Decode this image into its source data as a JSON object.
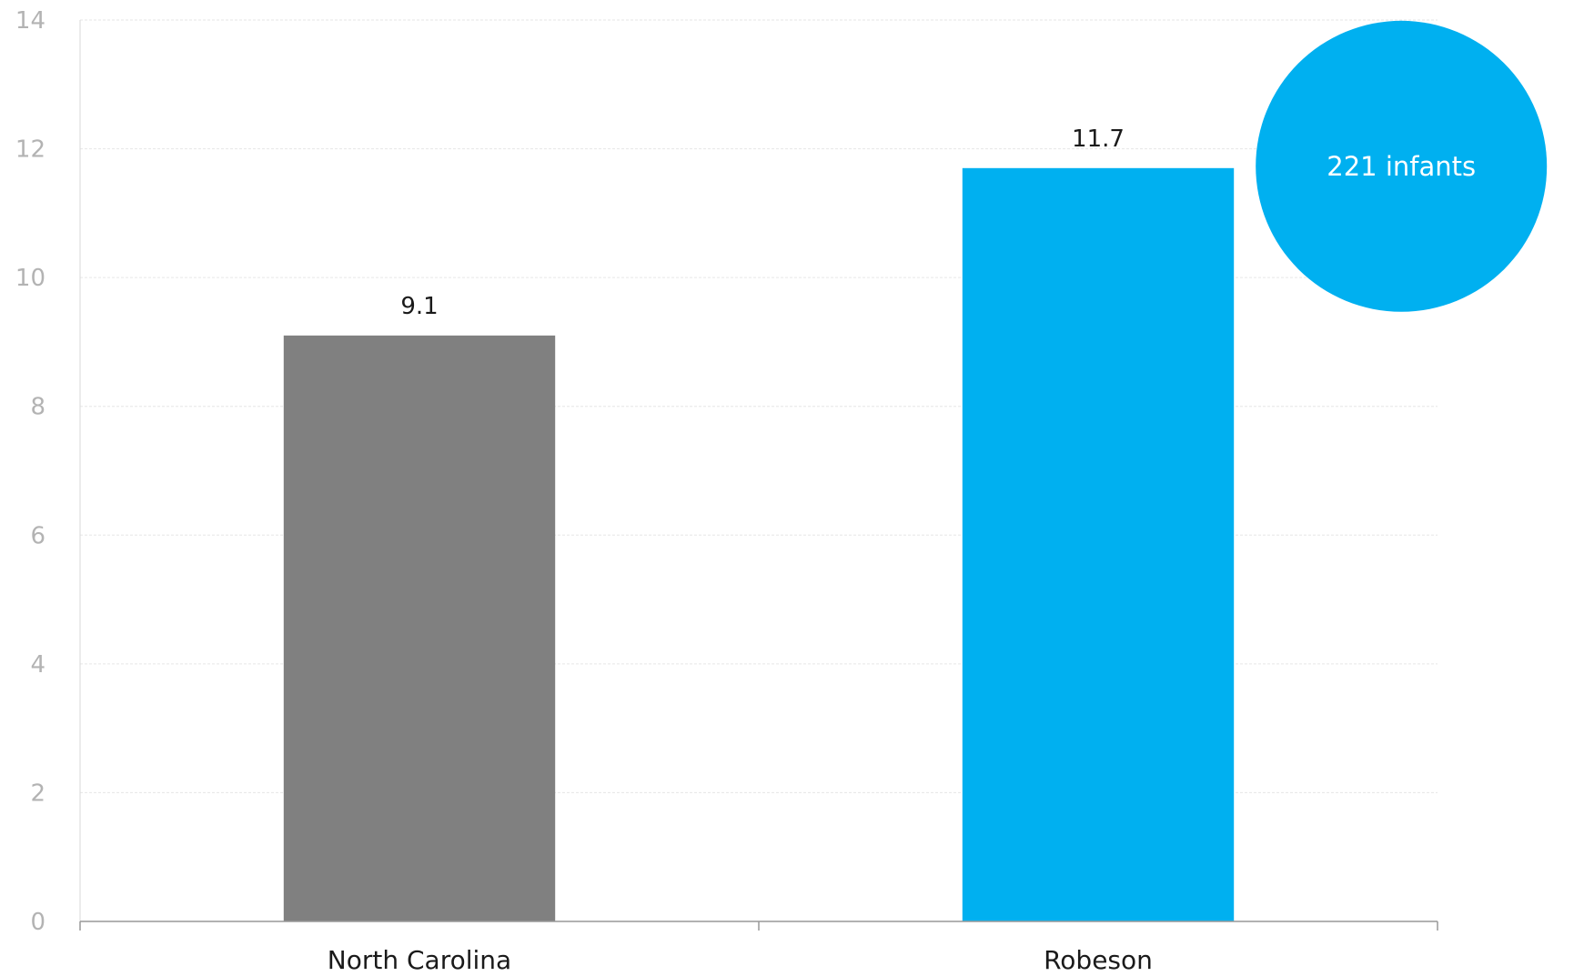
{
  "chart_data": {
    "type": "bar",
    "categories": [
      "North Carolina",
      "Robeson"
    ],
    "values": [
      9.1,
      11.7
    ],
    "value_labels": [
      "9.1",
      "11.7"
    ],
    "colors": [
      "#808080",
      "#00b0f0"
    ],
    "ylim": [
      0,
      14
    ],
    "yticks": [
      0,
      2,
      4,
      6,
      8,
      10,
      12,
      14
    ],
    "grid": true,
    "title": "",
    "xlabel": "",
    "ylabel": ""
  },
  "callout": {
    "text": "221 infants",
    "color": "#00b0f0",
    "target_category": "Robeson"
  }
}
